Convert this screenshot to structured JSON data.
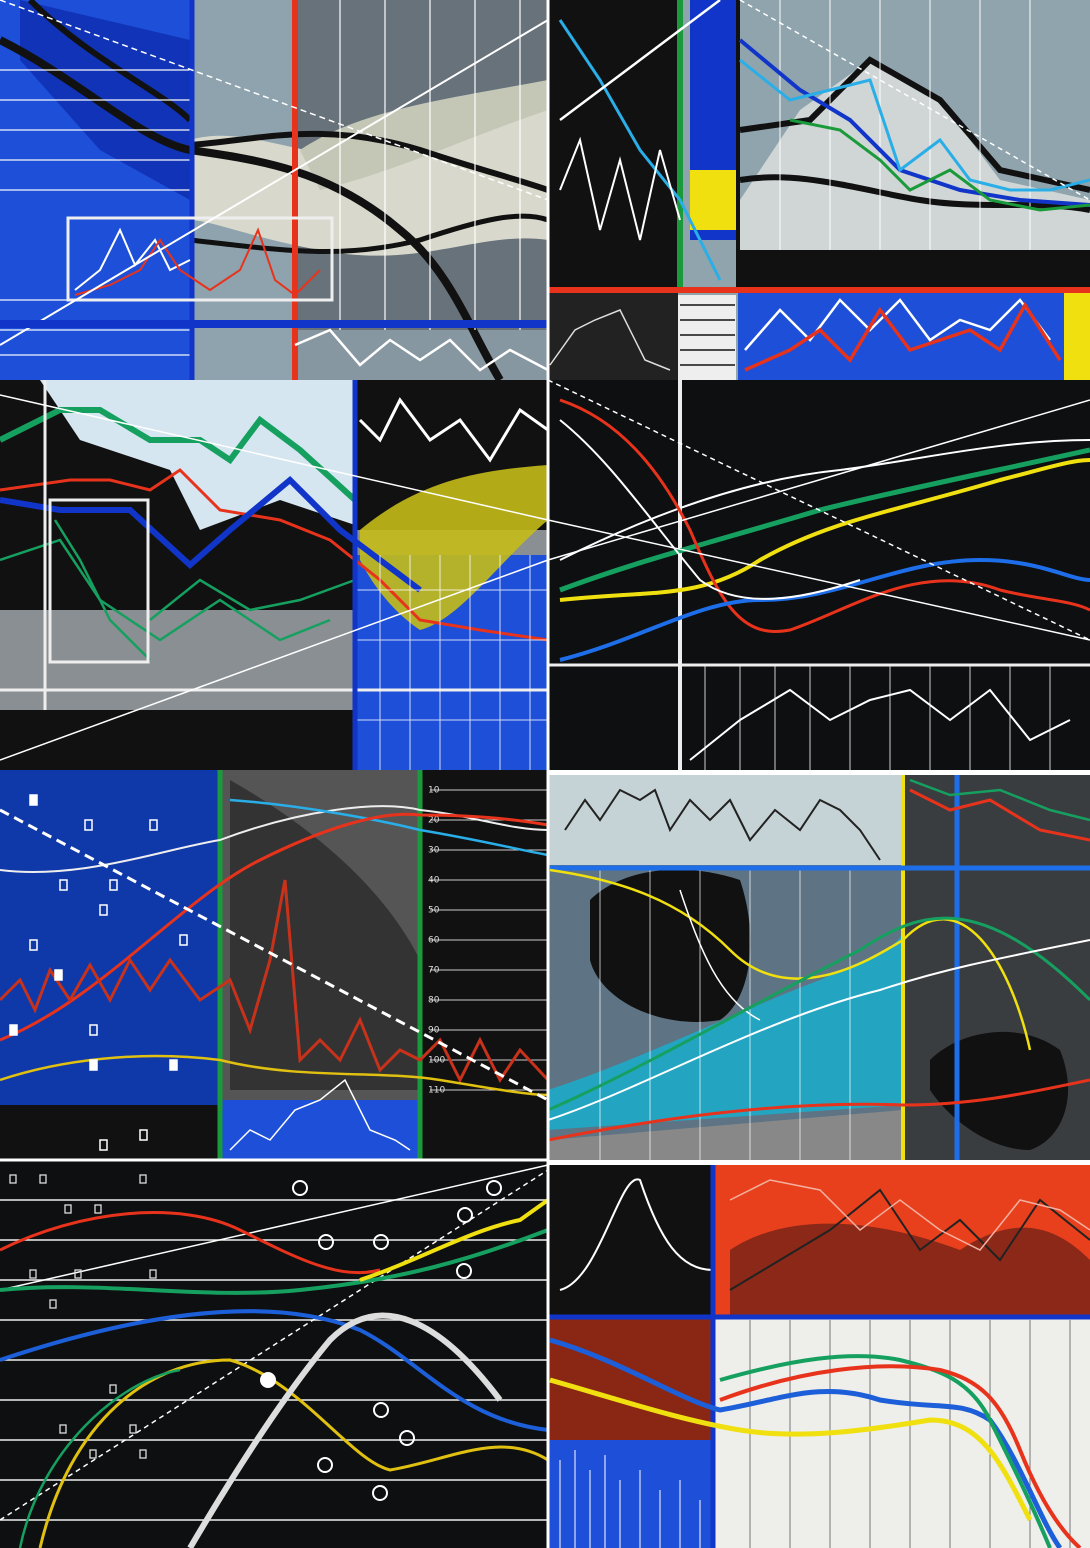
{
  "painting": {
    "scale_labels": [
      "10",
      "20",
      "30",
      "40",
      "50",
      "60",
      "70",
      "80",
      "90",
      "100",
      "110"
    ]
  }
}
